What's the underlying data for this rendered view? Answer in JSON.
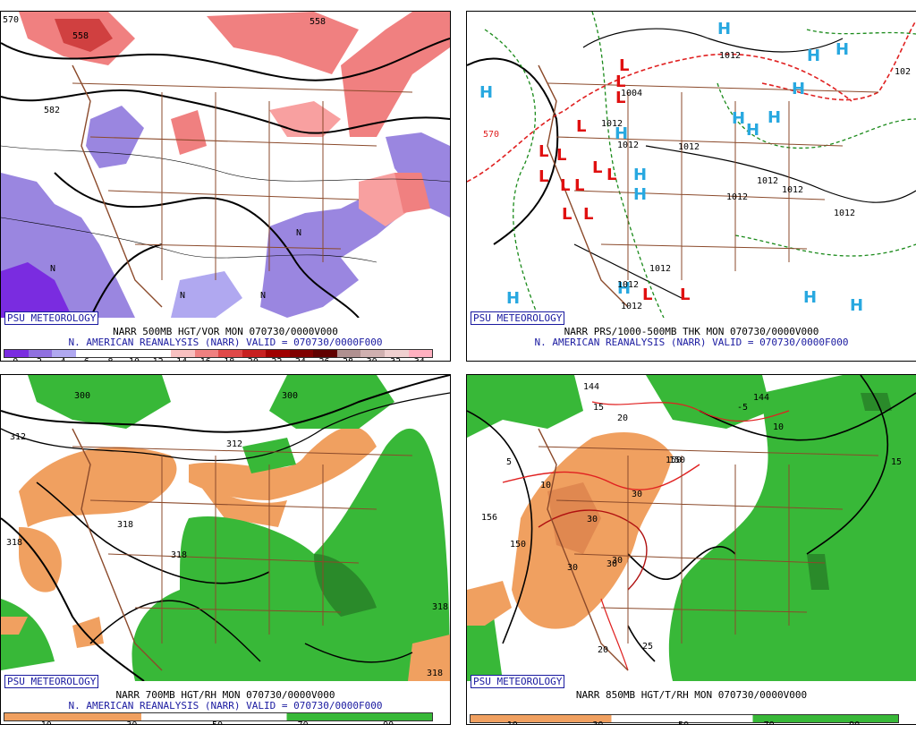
{
  "panels": [
    {
      "psu": "PSU METEOROLOGY",
      "caption1": "NARR 500MB HGT/VOR MON 070730/0000V000",
      "caption2": "N. AMERICAN REANALYSIS (NARR) VALID = 070730/0000F000",
      "ticks": [
        "0",
        "2",
        "4",
        "6",
        "8",
        "10",
        "12",
        "14",
        "16",
        "18",
        "20",
        "22",
        "24",
        "26",
        "28",
        "30",
        "32",
        "34"
      ],
      "colors": [
        "#7a2ce0",
        "#9070e0",
        "#b0a8f0",
        "#ffffff",
        "#ffffff",
        "#ffffff",
        "#ffffff",
        "#f8c0c0",
        "#f08080",
        "#e04848",
        "#c82020",
        "#a00000",
        "#800000",
        "#600000",
        "#b09090",
        "#d0b0b0",
        "#f0d0d0",
        "#ffb0c0"
      ],
      "labels": [
        "570",
        "558",
        "582",
        "558",
        "N",
        "N",
        "N",
        "N"
      ]
    },
    {
      "psu": "PSU METEOROLOGY",
      "caption1": "NARR PRS/1000-500MB THK MON 070730/0000V000",
      "caption2": "N. AMERICAN REANALYSIS (NARR) VALID = 070730/0000F000",
      "labels": [
        "1012",
        "1004",
        "1012",
        "1012",
        "1012",
        "1012",
        "1012",
        "1012",
        "1012",
        "1012",
        "1012",
        "1012",
        "102",
        "570"
      ],
      "highs": "H",
      "lows": "L"
    },
    {
      "psu": "PSU METEOROLOGY",
      "caption1": "NARR 700MB HGT/RH MON 070730/0000V000",
      "caption2": "N. AMERICAN REANALYSIS (NARR) VALID = 070730/0000F000",
      "ticks": [
        "10",
        "30",
        "50",
        "70",
        "90"
      ],
      "labels": [
        "300",
        "300",
        "312",
        "312",
        "318",
        "318",
        "318",
        "318",
        "318"
      ]
    },
    {
      "psu": "PSU METEOROLOGY",
      "caption1": "NARR 850MB HGT/T/RH MON 070730/0000V000",
      "ticks": [
        "10",
        "30",
        "50",
        "70",
        "90"
      ],
      "labels": [
        "144",
        "144",
        "15",
        "20",
        "-5",
        "10",
        "5",
        "15",
        "10",
        "150",
        "30",
        "30",
        "30",
        "30",
        "156",
        "150",
        "30",
        "20",
        "25",
        "150"
      ]
    }
  ]
}
